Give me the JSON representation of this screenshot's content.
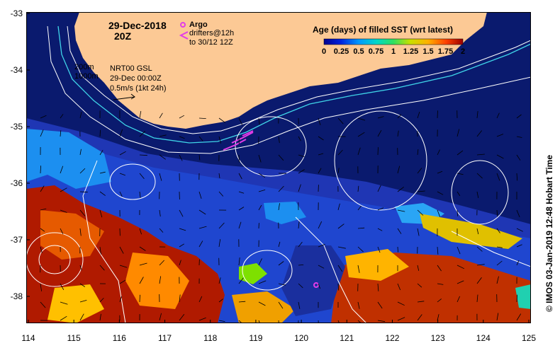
{
  "map": {
    "date_label": "29-Dec-2018",
    "time_label": "20Z",
    "x_ticks": [
      "114",
      "115",
      "116",
      "117",
      "118",
      "119",
      "120",
      "121",
      "122",
      "123",
      "124",
      "125"
    ],
    "y_ticks": [
      "-33",
      "-34",
      "-35",
      "-36",
      "-37",
      "-38"
    ],
    "lon_range": [
      114,
      125
    ],
    "lat_range": [
      -38.5,
      -33
    ]
  },
  "annotations": {
    "argo_label": "Argo",
    "drifters_line1": "drifters@12h",
    "drifters_line2": "to 30/12 12Z",
    "contour_200": "200m",
    "contour_1000": "1000m",
    "product": "NRT00 GSL",
    "product_time": "29-Dec 00:00Z",
    "vector_scale": "0.5m/s (1kt 24h)"
  },
  "legend": {
    "title": "Age (days) of filled SST (wrt latest)",
    "ticks": [
      "0",
      "0.25",
      "0.5",
      "0.75",
      "1",
      "1.25",
      "1.5",
      "1.75",
      "2"
    ],
    "range": [
      0,
      2
    ]
  },
  "credit": "© IMOS 03-Jan-2019 12:48 Hobart Time",
  "colors": {
    "land": "#fcc995",
    "ocean_base": "#1f36b4",
    "ocean_deep": "#0a1a6e",
    "argo": "#e23de8",
    "drifter": "#e23de8",
    "isobath_200": "#ffffff",
    "isobath_1000": "#3fd4e8"
  }
}
